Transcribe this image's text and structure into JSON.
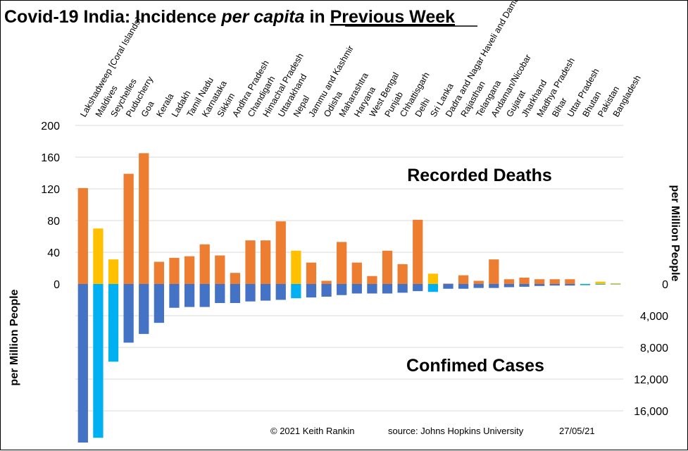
{
  "title": {
    "part1": "Covid-19 India: Incidence ",
    "part2": "per capita",
    "part3": " in ",
    "part4": "Previous Week"
  },
  "annotations": {
    "deaths_label": "Recorded Deaths",
    "cases_label": "Confimed Cases",
    "left_axis_title": "per Million People",
    "right_axis_title": "per Million People"
  },
  "footer": {
    "copyright": "© 2021  Keith  Rankin",
    "source": "source:  Johns  Hopkins  University",
    "date": "27/05/21"
  },
  "colors": {
    "india_deaths": "#ED7D31",
    "other_deaths": "#FFC000",
    "india_cases": "#4472C4",
    "other_cases": "#00B0F0",
    "gridline": "#D9D9D9"
  },
  "chart_data": {
    "type": "bar",
    "categories": [
      "Lakshadweep [Coral Islands]",
      "Maldives",
      "Seychelles",
      "Puducherry",
      "Goa",
      "Kerala",
      "Ladakh",
      "Tamil Nadu",
      "Karnataka",
      "Sikkim",
      "Andhra Pradesh",
      "Chandigarh",
      "Himachal Pradesh",
      "Uttarakhand",
      "Nepal",
      "Jammu and Kashmir",
      "Odisha",
      "Maharashtra",
      "Haryana",
      "West Bengal",
      "Punjab",
      "Chhattisgarh",
      "Delhi",
      "Sri Lanka",
      "Dadra and Nagar Haveli and Daman",
      "Rajasthan",
      "Telangana",
      "Andaman/Nicobar",
      "Gujarat",
      "Jharkhand",
      "Madhya Pradesh",
      "Bihar",
      "Uttar Pradesh",
      "Bhutan",
      "Pakistan",
      "Bangladesh"
    ],
    "is_country": [
      false,
      true,
      true,
      false,
      false,
      false,
      false,
      false,
      false,
      false,
      false,
      false,
      false,
      false,
      true,
      false,
      false,
      false,
      false,
      false,
      false,
      false,
      false,
      true,
      false,
      false,
      false,
      false,
      false,
      false,
      false,
      false,
      false,
      true,
      true,
      true
    ],
    "series": [
      {
        "name": "Recorded Deaths",
        "axis": "left",
        "values": [
          121,
          70,
          31,
          139,
          165,
          28,
          33,
          35,
          50,
          36,
          14,
          55,
          55,
          79,
          42,
          27,
          4,
          53,
          27,
          10,
          42,
          25,
          81,
          13,
          0.5,
          11,
          4,
          31,
          6,
          8,
          6,
          6,
          6,
          0.3,
          3,
          1
        ]
      },
      {
        "name": "Confimed Cases",
        "axis": "right",
        "values": [
          20000,
          19400,
          9800,
          7400,
          6300,
          4900,
          3000,
          2900,
          2900,
          2400,
          2400,
          2200,
          2100,
          2000,
          1800,
          1700,
          1600,
          1400,
          1200,
          1200,
          1200,
          1100,
          900,
          1000,
          600,
          600,
          500,
          500,
          400,
          350,
          250,
          200,
          200,
          150,
          80,
          50
        ]
      }
    ],
    "left_axis": {
      "ticks": [
        "200",
        "160",
        "120",
        "80",
        "40",
        "0"
      ],
      "range": [
        0,
        200
      ]
    },
    "right_axis": {
      "ticks": [
        "0",
        "4,000",
        "8,000",
        "12,000",
        "16,000"
      ],
      "range": [
        0,
        20000
      ]
    },
    "grid": true,
    "legend": "none"
  }
}
